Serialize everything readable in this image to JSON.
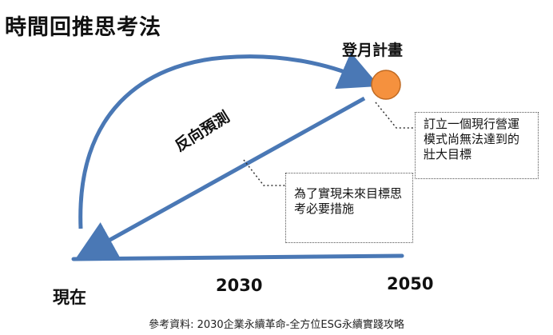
{
  "title": "時間回推思考法",
  "goal_label": "登月計畫",
  "goal_note": "訂立一個現行營運模式尚無法達到的壯大目標",
  "arrow_label": "反向預測",
  "action_note": "為了實現未來目標思考必要措施",
  "timeline": {
    "now": "現在",
    "mid": "2030",
    "end": "2050"
  },
  "reference": "參考資料: 2030企業永續革命-全方位ESG永續實踐攻略",
  "colors": {
    "arrow": "#4a78b5",
    "goal_circle": "#f5913e",
    "goal_circle_border": "#c06a22"
  }
}
